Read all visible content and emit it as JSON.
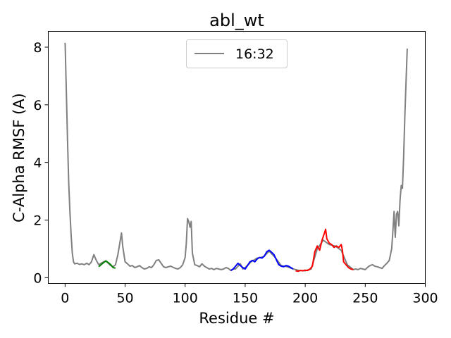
{
  "chart_data": {
    "type": "line",
    "title": "abl_wt",
    "xlabel": "Residue #",
    "ylabel": "C-Alpha RMSF (A)",
    "xlim": [
      -14,
      300
    ],
    "ylim": [
      -0.2,
      8.55
    ],
    "xticks": [
      0,
      50,
      100,
      150,
      200,
      250,
      300
    ],
    "yticks": [
      0,
      2,
      4,
      6,
      8
    ],
    "grid": false,
    "legend": {
      "placement": "top-center",
      "entries": [
        "16:32"
      ]
    },
    "series": [
      {
        "name": "16:32",
        "color": "#808080",
        "x": [
          0,
          1,
          2,
          3,
          4,
          5,
          6,
          7,
          8,
          10,
          12,
          14,
          16,
          18,
          20,
          22,
          24,
          26,
          28,
          30,
          32,
          34,
          36,
          38,
          40,
          42,
          44,
          46,
          47,
          48,
          50,
          52,
          54,
          56,
          58,
          60,
          62,
          64,
          66,
          68,
          70,
          72,
          74,
          76,
          78,
          80,
          82,
          84,
          86,
          88,
          90,
          92,
          94,
          96,
          98,
          100,
          101,
          102,
          103,
          104,
          105,
          106,
          108,
          110,
          112,
          114,
          116,
          118,
          120,
          122,
          124,
          126,
          128,
          130,
          132,
          134,
          136,
          138,
          140,
          142,
          144,
          146,
          148,
          150,
          155,
          160,
          165,
          170,
          175,
          180,
          185,
          190,
          195,
          200,
          205,
          210,
          215,
          220,
          225,
          230,
          235,
          240,
          242,
          244,
          246,
          248,
          250,
          252,
          254,
          256,
          258,
          260,
          262,
          264,
          266,
          268,
          270,
          272,
          273,
          274,
          275,
          276,
          277,
          278,
          279,
          280,
          281,
          282,
          283,
          284,
          285
        ],
        "y": [
          8.15,
          6.5,
          4.8,
          3.3,
          2.3,
          1.5,
          0.85,
          0.55,
          0.48,
          0.5,
          0.46,
          0.48,
          0.45,
          0.5,
          0.45,
          0.55,
          0.8,
          0.6,
          0.45,
          0.5,
          0.55,
          0.58,
          0.5,
          0.42,
          0.38,
          0.45,
          0.8,
          1.3,
          1.55,
          1.1,
          0.55,
          0.48,
          0.4,
          0.42,
          0.35,
          0.38,
          0.42,
          0.35,
          0.3,
          0.32,
          0.38,
          0.35,
          0.45,
          0.6,
          0.62,
          0.5,
          0.38,
          0.35,
          0.38,
          0.4,
          0.36,
          0.32,
          0.3,
          0.35,
          0.45,
          0.7,
          1.2,
          2.05,
          1.95,
          1.75,
          1.95,
          0.85,
          0.45,
          0.42,
          0.38,
          0.48,
          0.4,
          0.35,
          0.3,
          0.32,
          0.28,
          0.32,
          0.3,
          0.28,
          0.3,
          0.35,
          0.32,
          0.25,
          0.3,
          0.3,
          0.4,
          0.48,
          0.3,
          0.35,
          0.55,
          0.68,
          0.72,
          0.92,
          0.7,
          0.42,
          0.38,
          0.3,
          0.25,
          0.24,
          0.3,
          1.0,
          1.3,
          1.15,
          1.1,
          0.95,
          0.45,
          0.28,
          0.3,
          0.28,
          0.32,
          0.3,
          0.28,
          0.36,
          0.42,
          0.45,
          0.4,
          0.38,
          0.35,
          0.32,
          0.42,
          0.5,
          0.6,
          1.0,
          1.6,
          2.3,
          1.4,
          2.2,
          2.3,
          1.8,
          2.7,
          3.2,
          3.1,
          4.2,
          5.6,
          6.8,
          7.95
        ]
      },
      {
        "name": "",
        "color": "#008000",
        "x": [
          28,
          30,
          32,
          34,
          36,
          38,
          40,
          42
        ],
        "y": [
          0.38,
          0.45,
          0.52,
          0.58,
          0.52,
          0.45,
          0.35,
          0.33
        ]
      },
      {
        "name": "",
        "color": "#0000ff",
        "x": [
          138,
          140,
          142,
          144,
          146,
          148,
          150,
          152,
          154,
          156,
          158,
          160,
          162,
          164,
          166,
          168,
          170,
          172,
          174,
          176,
          178,
          180,
          182,
          184,
          186,
          188,
          190
        ],
        "y": [
          0.25,
          0.3,
          0.4,
          0.5,
          0.42,
          0.35,
          0.3,
          0.42,
          0.55,
          0.6,
          0.55,
          0.65,
          0.7,
          0.68,
          0.75,
          0.9,
          0.95,
          0.88,
          0.8,
          0.62,
          0.45,
          0.4,
          0.38,
          0.42,
          0.4,
          0.35,
          0.3
        ]
      },
      {
        "name": "",
        "color": "#ff0000",
        "x": [
          192,
          194,
          196,
          198,
          200,
          202,
          204,
          206,
          208,
          210,
          212,
          214,
          216,
          217,
          218,
          220,
          222,
          224,
          226,
          228,
          230,
          231,
          232,
          234,
          236,
          238,
          240
        ],
        "y": [
          0.24,
          0.22,
          0.25,
          0.24,
          0.26,
          0.25,
          0.3,
          0.4,
          0.9,
          1.1,
          0.95,
          1.3,
          1.55,
          1.68,
          1.35,
          1.2,
          1.15,
          1.05,
          1.1,
          1.05,
          1.15,
          0.95,
          0.55,
          0.45,
          0.35,
          0.3,
          0.28
        ]
      }
    ]
  }
}
